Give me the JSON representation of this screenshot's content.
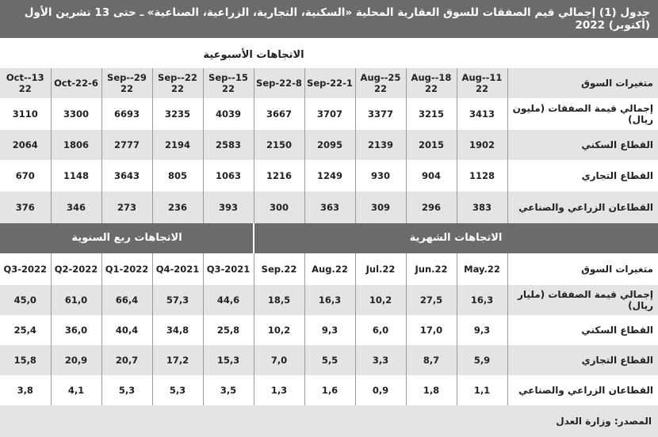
{
  "title": "جدول (1) إجمالي قيم الصفقات للسوق العقارية المحلية «السكنية، التجارية، الزراعية، الصناعية» ـ حتى 13 تشرين الأول (أكتوبر) 2022",
  "weekly": {
    "heading": "الاتجاهات الأسبوعية",
    "header": {
      "label": "متغيرات السوق",
      "cols": [
        "11-Aug-22",
        "18-Aug-22",
        "25-Aug-22",
        "1-Sep-22",
        "8-Sep-22",
        "15-Sep-22",
        "22-Sep-22",
        "29-Sep-22",
        "6-Oct-22",
        "13-Oct-22"
      ]
    },
    "rows": [
      {
        "label": "إجمالي قيمة الصفقات (مليون ريال)",
        "values": [
          "3413",
          "3215",
          "3377",
          "3707",
          "3667",
          "4039",
          "3235",
          "6693",
          "3300",
          "3110"
        ]
      },
      {
        "label": "القطاع السكني",
        "values": [
          "1902",
          "2015",
          "2139",
          "2095",
          "2150",
          "2583",
          "2194",
          "2777",
          "1806",
          "2064"
        ]
      },
      {
        "label": "القطاع التجاري",
        "values": [
          "1128",
          "904",
          "930",
          "1249",
          "1216",
          "1063",
          "805",
          "3643",
          "1148",
          "670"
        ]
      },
      {
        "label": "القطاعان الزراعي والصناعي",
        "values": [
          "383",
          "296",
          "309",
          "363",
          "300",
          "393",
          "236",
          "273",
          "346",
          "376"
        ]
      }
    ]
  },
  "band": {
    "monthly": "الاتجاهات الشهرية",
    "quarterly": "الاتجاهات ربع السنوية"
  },
  "periodic": {
    "header": {
      "label": "متغيرات السوق",
      "cols": [
        "May.22",
        "Jun.22",
        "Jul.22",
        "Aug.22",
        "Sep.22",
        "2021-Q3",
        "2021-Q4",
        "2022-Q1",
        "2022-Q2",
        "2022-Q3"
      ]
    },
    "rows": [
      {
        "label": "إجمالي قيمة الصفقات (مليار ريال)",
        "values": [
          "16,3",
          "27,5",
          "10,2",
          "16,3",
          "18,5",
          "44,6",
          "57,3",
          "66,4",
          "61,0",
          "45,0"
        ]
      },
      {
        "label": "القطاع السكني",
        "values": [
          "9,3",
          "17,0",
          "6,0",
          "9,3",
          "10,2",
          "25,8",
          "34,8",
          "40,4",
          "36,0",
          "25,4"
        ]
      },
      {
        "label": "القطاع التجاري",
        "values": [
          "5,9",
          "8,7",
          "3,3",
          "5,5",
          "7,0",
          "15,3",
          "17,2",
          "20,7",
          "20,9",
          "15,8"
        ]
      },
      {
        "label": "القطاعان الزراعي والصناعي",
        "values": [
          "1,1",
          "1,8",
          "0,9",
          "1,6",
          "1,3",
          "3,5",
          "5,3",
          "5,3",
          "4,1",
          "3,8"
        ]
      }
    ]
  },
  "source": "المصدر: وزارة العدل",
  "colors": {
    "band": "#6b6b6b",
    "shade": "#e4e4e4",
    "text": "#222222"
  }
}
